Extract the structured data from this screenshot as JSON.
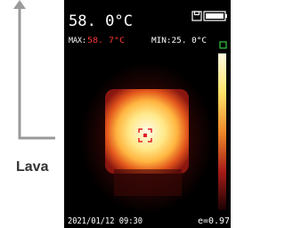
{
  "callout": {
    "label": "Lava"
  },
  "screen": {
    "temperature": "58. 0°C",
    "max_label": "MAX:",
    "max_value": "58. 7°C",
    "min": "MIN:25. 0°C",
    "datetime": "2021/01/12 09:30",
    "emissivity": "e=0.97"
  }
}
